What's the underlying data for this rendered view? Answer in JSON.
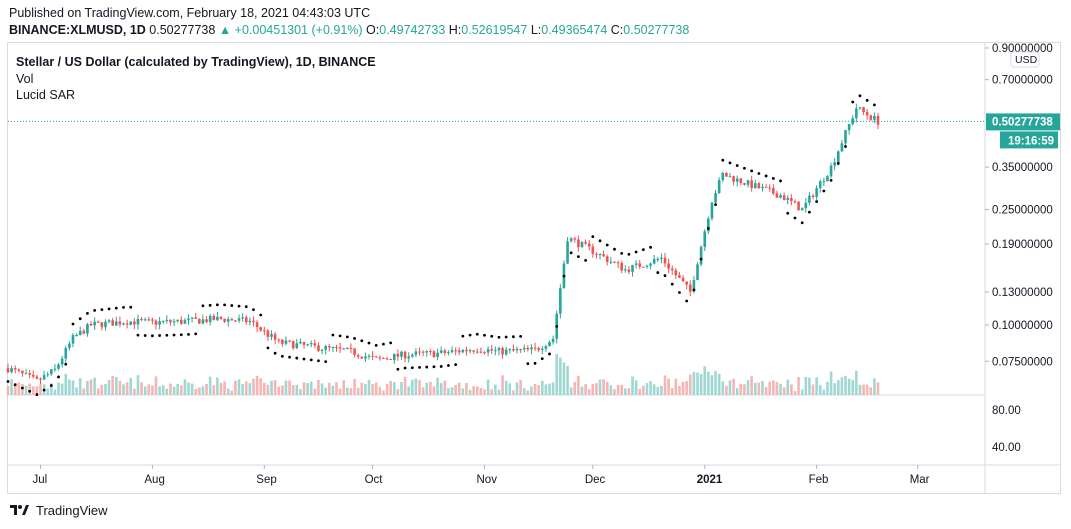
{
  "header": {
    "published": "Published on TradingView.com, February 18, 2021 04:43:03 UTC",
    "symbol": "BINANCE:XLMUSD, 1D",
    "open_val": "0.50277738",
    "change": "▲ +0.00451301 (+0.91%)",
    "o_label": "O:",
    "o_val": "0.49742733",
    "h_label": "H:",
    "h_val": "0.52619547",
    "l_label": "L:",
    "l_val": "0.49365474",
    "c_label": "C:",
    "c_val": "0.50277738"
  },
  "legend": {
    "title": "Stellar / US Dollar (calculated by TradingView), 1D, BINANCE",
    "vol": "Vol",
    "sar": "Lucid SAR"
  },
  "footer": {
    "brand": "TradingView"
  },
  "colors": {
    "up": "#26a69a",
    "down": "#ef5350",
    "vol_up": "#9fd8d2",
    "vol_down": "#f5b5b3",
    "sar": "#000000",
    "last_price_bg": "#26a69a",
    "grid": "#d6dae3"
  },
  "chart_data": {
    "type": "candlestick",
    "title": "Stellar / US Dollar (calculated by TradingView), 1D, BINANCE",
    "currency_label": "USD",
    "y_scale": "log",
    "y_tick_labels": [
      "0.90000000",
      "0.70000000",
      "0.50277738",
      "0.35000000",
      "0.25000000",
      "0.19000000",
      "0.13000000",
      "0.10000000",
      "0.07500000"
    ],
    "last_price": "0.50277738",
    "countdown": "19:16:59",
    "volume_axis_ticks": [
      "80.00",
      "40.00"
    ],
    "x_tick_labels": [
      "Jul",
      "Aug",
      "Sep",
      "Oct",
      "Nov",
      "Dec",
      "2021",
      "Feb",
      "Mar"
    ],
    "price_path": [
      [
        "2020-06-22",
        0.071
      ],
      [
        "2020-06-30",
        0.064
      ],
      [
        "2020-07-05",
        0.07
      ],
      [
        "2020-07-10",
        0.09
      ],
      [
        "2020-07-15",
        0.1
      ],
      [
        "2020-07-25",
        0.103
      ],
      [
        "2020-08-01",
        0.102
      ],
      [
        "2020-08-10",
        0.103
      ],
      [
        "2020-08-20",
        0.105
      ],
      [
        "2020-08-28",
        0.103
      ],
      [
        "2020-09-05",
        0.087
      ],
      [
        "2020-09-15",
        0.084
      ],
      [
        "2020-09-25",
        0.081
      ],
      [
        "2020-10-02",
        0.076
      ],
      [
        "2020-10-10",
        0.079
      ],
      [
        "2020-10-20",
        0.08
      ],
      [
        "2020-10-30",
        0.083
      ],
      [
        "2020-11-05",
        0.081
      ],
      [
        "2020-11-15",
        0.082
      ],
      [
        "2020-11-20",
        0.09
      ],
      [
        "2020-11-24",
        0.2
      ],
      [
        "2020-12-01",
        0.18
      ],
      [
        "2020-12-10",
        0.155
      ],
      [
        "2020-12-20",
        0.17
      ],
      [
        "2020-12-28",
        0.13
      ],
      [
        "2021-01-03",
        0.27
      ],
      [
        "2021-01-06",
        0.33
      ],
      [
        "2021-01-15",
        0.3
      ],
      [
        "2021-01-22",
        0.28
      ],
      [
        "2021-01-28",
        0.25
      ],
      [
        "2021-02-05",
        0.35
      ],
      [
        "2021-02-12",
        0.56
      ],
      [
        "2021-02-18",
        0.50277738
      ]
    ]
  }
}
